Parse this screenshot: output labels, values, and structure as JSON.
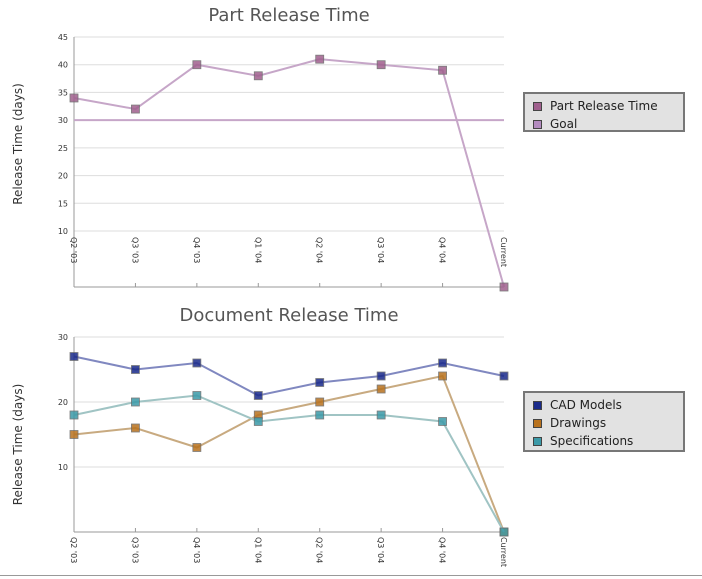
{
  "chart_data": [
    {
      "type": "line",
      "title": "Part Release Time",
      "ylabel": "Release Time (days)",
      "xlabel": "",
      "categories": [
        "Q2 '03",
        "Q3 '03",
        "Q4 '03",
        "Q1 '04",
        "Q2 '04",
        "Q3 '04",
        "Q4 '04",
        "Current"
      ],
      "ylim": [
        10,
        45
      ],
      "yticks": [
        10,
        15,
        20,
        25,
        30,
        35,
        40,
        45
      ],
      "grid": true,
      "legend_position": "right",
      "series": [
        {
          "name": "Part Release Time",
          "values": [
            34,
            32,
            40,
            38,
            41,
            40,
            39,
            0
          ],
          "color": "#c6a6c8",
          "swatch": "#a0608e"
        },
        {
          "name": "Goal",
          "values": [
            30,
            30,
            30,
            30,
            30,
            30,
            30,
            30
          ],
          "color": "#c6a6c8",
          "swatch": "#b48cc0"
        }
      ]
    },
    {
      "type": "line",
      "title": "Document Release Time",
      "ylabel": "Release Time (days)",
      "xlabel": "",
      "categories": [
        "Q2 '03",
        "Q3 '03",
        "Q4 '03",
        "Q1 '04",
        "Q2 '04",
        "Q3 '04",
        "Q4 '04",
        "Current"
      ],
      "ylim": [
        0,
        30
      ],
      "yticks": [
        10,
        20,
        30
      ],
      "grid": true,
      "legend_position": "right",
      "series": [
        {
          "name": "CAD Models",
          "values": [
            27,
            25,
            26,
            21,
            23,
            24,
            26,
            24
          ],
          "color": "#8088c0",
          "swatch": "#1a2a8a"
        },
        {
          "name": "Drawings",
          "values": [
            15,
            16,
            13,
            18,
            20,
            22,
            24,
            0
          ],
          "color": "#c8aa80",
          "swatch": "#b8721e"
        },
        {
          "name": "Specifications",
          "values": [
            18,
            20,
            21,
            17,
            18,
            18,
            17,
            0
          ],
          "color": "#a0c4c4",
          "swatch": "#3c9aa8"
        }
      ]
    }
  ]
}
